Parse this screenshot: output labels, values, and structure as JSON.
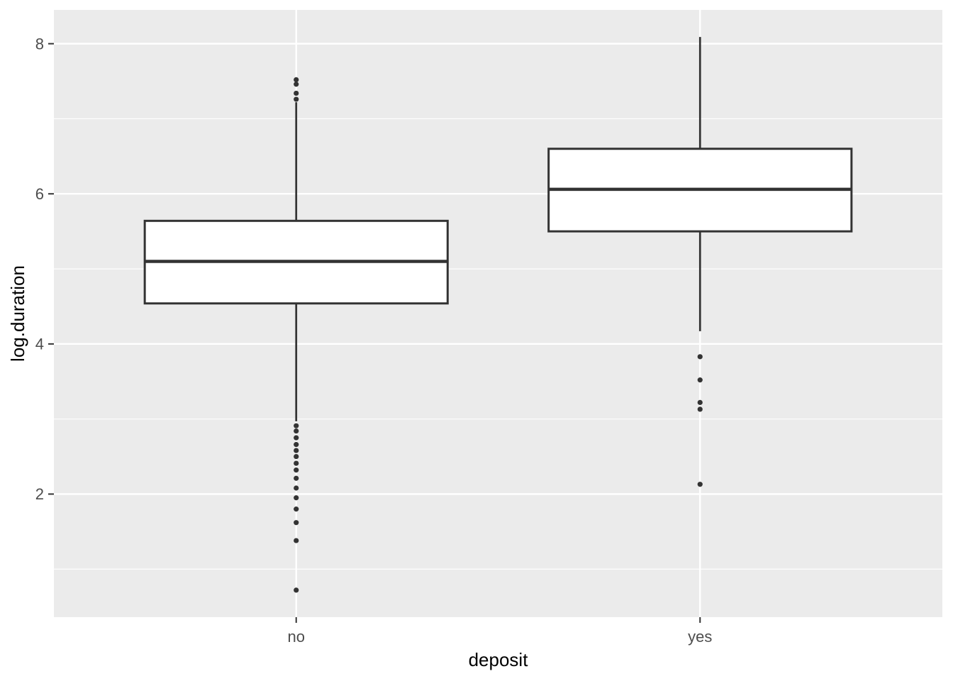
{
  "chart_data": {
    "type": "boxplot",
    "title": "",
    "xlabel": "deposit",
    "ylabel": "log.duration",
    "categories": [
      "no",
      "yes"
    ],
    "y_ticks": [
      2,
      4,
      6,
      8
    ],
    "y_minor_ticks": [
      1,
      3,
      5,
      7
    ],
    "ylim": [
      0.36,
      8.45
    ],
    "grid": "on",
    "legend": "none",
    "series": [
      {
        "category": "no",
        "whisker_low": 2.97,
        "q1": 4.54,
        "median": 5.1,
        "q3": 5.64,
        "whisker_high": 7.22,
        "outliers": [
          7.52,
          7.46,
          7.34,
          7.26,
          2.91,
          2.84,
          2.75,
          2.66,
          2.58,
          2.5,
          2.41,
          2.32,
          2.21,
          2.08,
          1.95,
          1.8,
          1.62,
          1.38,
          0.72
        ]
      },
      {
        "category": "yes",
        "whisker_low": 4.17,
        "q1": 5.5,
        "median": 6.06,
        "q3": 6.6,
        "whisker_high": 8.09,
        "outliers": [
          3.83,
          3.52,
          3.22,
          3.13,
          2.13
        ]
      }
    ],
    "style": {
      "panel_bg": "#EBEBEB",
      "grid_color": "#FFFFFF",
      "box_fill": "#FFFFFF",
      "box_stroke": "#333333",
      "point_color": "#333333",
      "tick_mark_color": "#333333",
      "tick_label_color": "#4d4d4d",
      "axis_title_color": "#000000"
    }
  }
}
